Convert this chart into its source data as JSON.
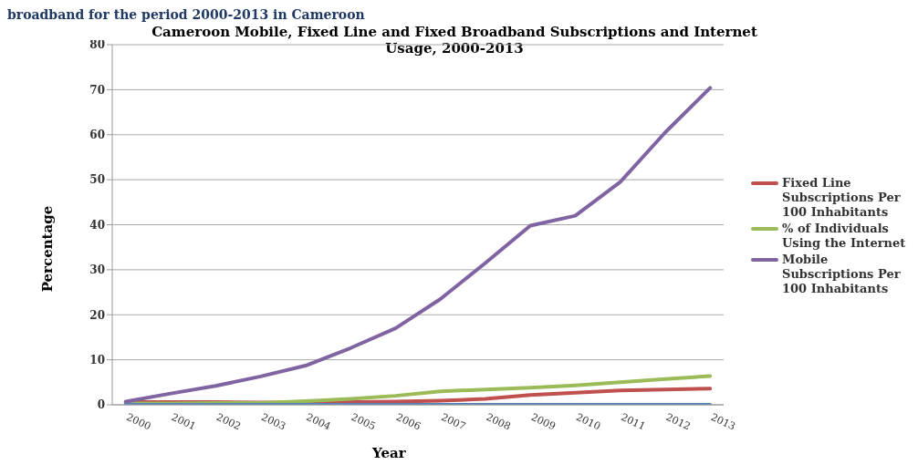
{
  "chart_data": {
    "type": "line",
    "title": "Cameroon Mobile, Fixed Line and Fixed Broadband Subscriptions and Internet Usage, 2000-2013",
    "xlabel": "Year",
    "ylabel": "Percentage",
    "annotations": [
      "broadband for the period 2000-2013 in Cameroon"
    ],
    "categories": [
      "2000",
      "2001",
      "2002",
      "2003",
      "2004",
      "2005",
      "2006",
      "2007",
      "2008",
      "2009",
      "2010",
      "2011",
      "2012",
      "2013"
    ],
    "series": [
      {
        "name": "Fixed Line Subscriptions Per 100 Inhabitants",
        "color": "#c0504d",
        "values": [
          0.6,
          0.6,
          0.6,
          0.5,
          0.5,
          0.6,
          0.7,
          0.9,
          1.3,
          2.2,
          2.7,
          3.2,
          3.4,
          3.6
        ]
      },
      {
        "name": "% of Individuals Using the Internet",
        "color": "#9bbb59",
        "values": [
          0.3,
          0.3,
          0.4,
          0.4,
          0.8,
          1.3,
          2,
          3,
          3.4,
          3.8,
          4.3,
          5,
          5.7,
          6.4
        ]
      },
      {
        "name": "Mobile Subscriptions Per 100 Inhabitants",
        "color": "#8064a2",
        "values": [
          0.7,
          2.5,
          4.2,
          6.3,
          8.7,
          12.6,
          17,
          23.5,
          31.5,
          39.8,
          42,
          49.5,
          60.5,
          70.4
        ]
      },
      {
        "color": "#4f81bd",
        "values": [
          0,
          0,
          0,
          0,
          0,
          0,
          0,
          0,
          0,
          0,
          0,
          0,
          0,
          0
        ]
      }
    ],
    "ylim": [
      0,
      80
    ],
    "yticks": [
      0,
      10,
      20,
      30,
      40,
      50,
      60,
      70,
      80
    ],
    "grid": "y",
    "legend": "right",
    "marker": "none",
    "line_style": "solid"
  }
}
